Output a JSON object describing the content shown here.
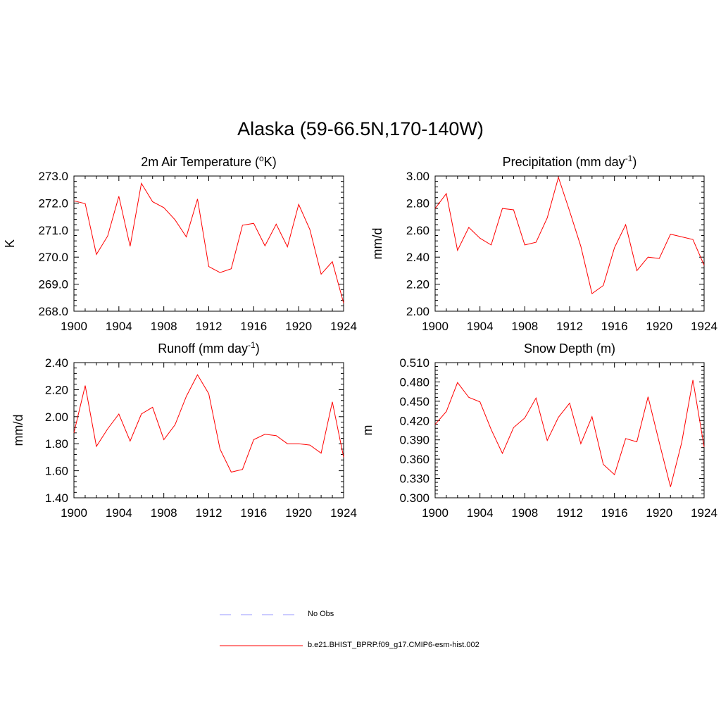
{
  "title": "Alaska (59-66.5N,170-140W)",
  "legend": [
    {
      "label": "No Obs",
      "color": "#9999ff",
      "style": "dashed"
    },
    {
      "label": "b.e21.BHIST_BPRP.f09_g17.CMIP6-esm-hist.002",
      "color": "#ff0000",
      "style": "solid"
    }
  ],
  "chart_data": [
    {
      "type": "line",
      "title": "2m Air Temperature (",
      "title_sup": "o",
      "title_after": "K)",
      "title_sup2": "",
      "title_end": "",
      "ylabel": "K",
      "ylim": [
        268.0,
        273.0
      ],
      "yticks": [
        "268.0",
        "269.0",
        "270.0",
        "271.0",
        "272.0",
        "273.0"
      ],
      "xlim": [
        1900,
        1924
      ],
      "xticks": [
        "1900",
        "1904",
        "1908",
        "1912",
        "1916",
        "1920",
        "1924"
      ],
      "x": [
        1900,
        1901,
        1902,
        1903,
        1904,
        1905,
        1906,
        1907,
        1908,
        1909,
        1910,
        1911,
        1912,
        1913,
        1914,
        1915,
        1916,
        1917,
        1918,
        1919,
        1920,
        1921,
        1922,
        1923,
        1924
      ],
      "series": [
        {
          "color": "#ff0000",
          "values": [
            272.08,
            271.98,
            270.1,
            270.78,
            272.25,
            270.4,
            272.73,
            272.05,
            271.83,
            271.38,
            270.75,
            272.15,
            269.65,
            269.43,
            269.57,
            271.18,
            271.25,
            270.42,
            271.22,
            270.38,
            271.95,
            271.02,
            269.37,
            269.83,
            268.3
          ]
        }
      ]
    },
    {
      "type": "line",
      "title": "Precipitation (mm day",
      "title_sup": "-1",
      "title_after": ")",
      "title_sup2": "",
      "title_end": "",
      "ylabel": "mm/d",
      "ylim": [
        2.0,
        3.0
      ],
      "yticks": [
        "2.00",
        "2.20",
        "2.40",
        "2.60",
        "2.80",
        "3.00"
      ],
      "xlim": [
        1900,
        1924
      ],
      "xticks": [
        "1900",
        "1904",
        "1908",
        "1912",
        "1916",
        "1920",
        "1924"
      ],
      "x": [
        1900,
        1901,
        1902,
        1903,
        1904,
        1905,
        1906,
        1907,
        1908,
        1909,
        1910,
        1911,
        1912,
        1913,
        1914,
        1915,
        1916,
        1917,
        1918,
        1919,
        1920,
        1921,
        1922,
        1923,
        1924
      ],
      "series": [
        {
          "color": "#ff0000",
          "values": [
            2.76,
            2.87,
            2.45,
            2.62,
            2.54,
            2.49,
            2.76,
            2.75,
            2.49,
            2.51,
            2.69,
            2.99,
            2.74,
            2.48,
            2.13,
            2.19,
            2.47,
            2.64,
            2.3,
            2.4,
            2.39,
            2.57,
            2.55,
            2.53,
            2.34
          ]
        }
      ]
    },
    {
      "type": "line",
      "title": "Runoff (mm day",
      "title_sup": "-1",
      "title_after": ")",
      "title_sup2": "",
      "title_end": "",
      "ylabel": "mm/d",
      "ylim": [
        1.4,
        2.4
      ],
      "yticks": [
        "1.40",
        "1.60",
        "1.80",
        "2.00",
        "2.20",
        "2.40"
      ],
      "xlim": [
        1900,
        1924
      ],
      "xticks": [
        "1900",
        "1904",
        "1908",
        "1912",
        "1916",
        "1920",
        "1924"
      ],
      "x": [
        1900,
        1901,
        1902,
        1903,
        1904,
        1905,
        1906,
        1907,
        1908,
        1909,
        1910,
        1911,
        1912,
        1913,
        1914,
        1915,
        1916,
        1917,
        1918,
        1919,
        1920,
        1921,
        1922,
        1923,
        1924
      ],
      "series": [
        {
          "color": "#ff0000",
          "values": [
            1.88,
            2.23,
            1.78,
            1.91,
            2.02,
            1.82,
            2.02,
            2.07,
            1.83,
            1.94,
            2.15,
            2.31,
            2.17,
            1.76,
            1.59,
            1.61,
            1.83,
            1.87,
            1.86,
            1.8,
            1.8,
            1.79,
            1.73,
            2.11,
            1.7
          ]
        }
      ]
    },
    {
      "type": "line",
      "title": "Snow Depth (m)",
      "title_sup": "",
      "title_after": "",
      "title_sup2": "",
      "title_end": "",
      "ylabel": "m",
      "ylim": [
        0.3,
        0.51
      ],
      "yticks": [
        "0.300",
        "0.330",
        "0.360",
        "0.390",
        "0.420",
        "0.450",
        "0.480",
        "0.510"
      ],
      "xlim": [
        1900,
        1924
      ],
      "xticks": [
        "1900",
        "1904",
        "1908",
        "1912",
        "1916",
        "1920",
        "1924"
      ],
      "x": [
        1900,
        1901,
        1902,
        1903,
        1904,
        1905,
        1906,
        1907,
        1908,
        1909,
        1910,
        1911,
        1912,
        1913,
        1914,
        1915,
        1916,
        1917,
        1918,
        1919,
        1920,
        1921,
        1922,
        1923,
        1924
      ],
      "series": [
        {
          "color": "#ff0000",
          "values": [
            0.414,
            0.434,
            0.479,
            0.456,
            0.449,
            0.406,
            0.369,
            0.409,
            0.424,
            0.455,
            0.389,
            0.425,
            0.447,
            0.384,
            0.426,
            0.352,
            0.336,
            0.392,
            0.387,
            0.457,
            0.386,
            0.317,
            0.386,
            0.483,
            0.379
          ]
        }
      ]
    }
  ]
}
